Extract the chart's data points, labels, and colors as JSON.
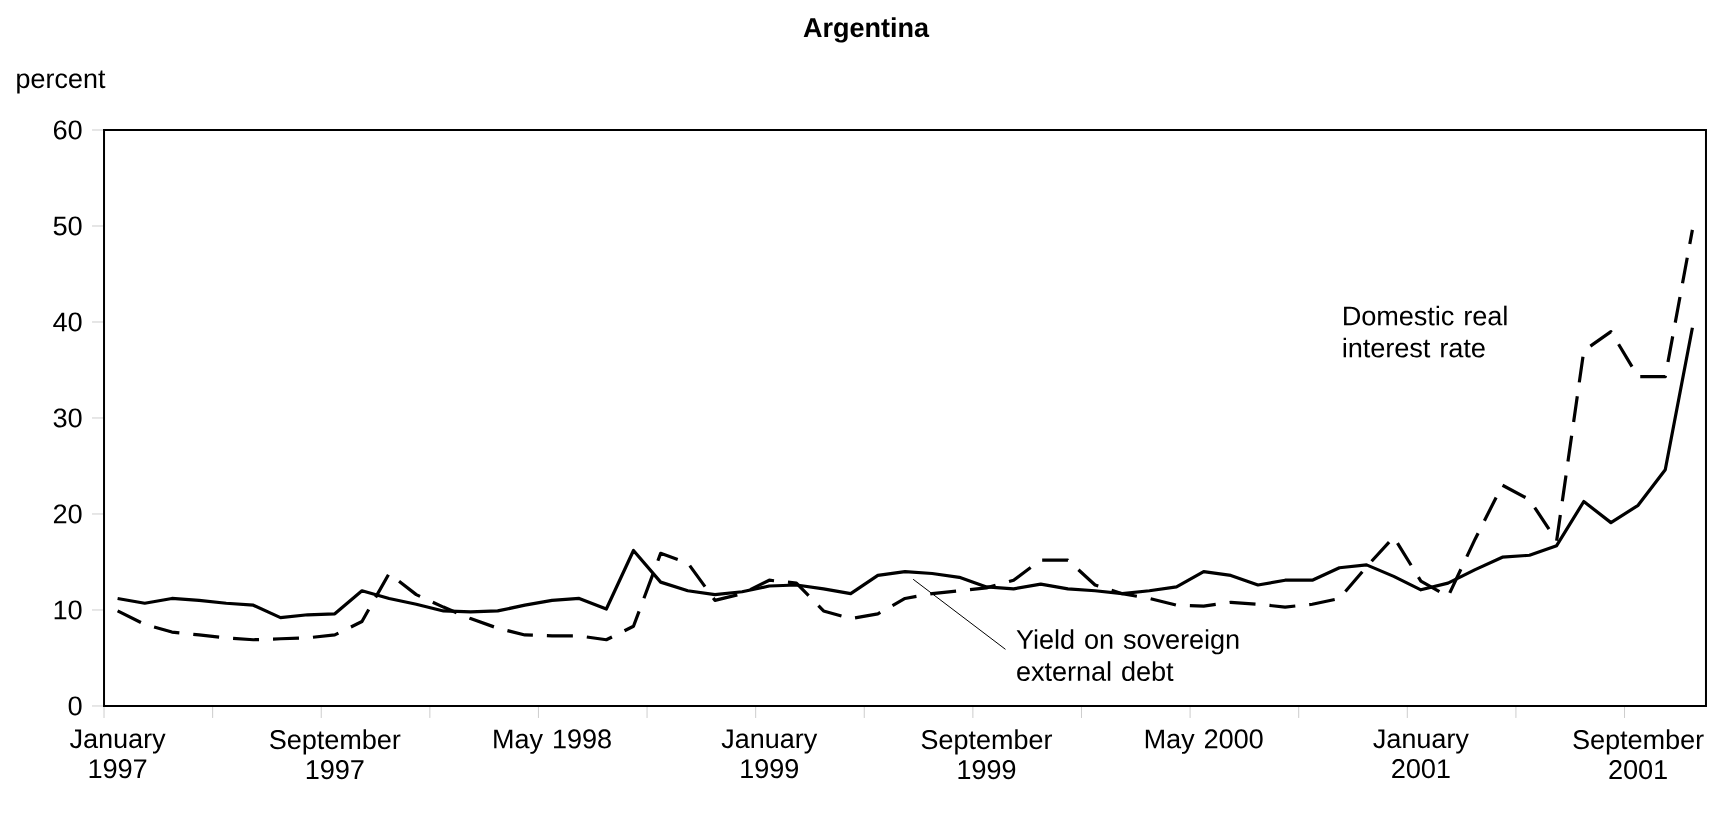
{
  "chart_data": {
    "type": "line",
    "title": "Argentina",
    "ylabel": "percent",
    "categories": [
      "January 1997",
      null,
      null,
      null,
      null,
      null,
      null,
      null,
      "September 1997",
      null,
      null,
      null,
      null,
      null,
      null,
      null,
      "May 1998",
      null,
      null,
      null,
      null,
      null,
      null,
      null,
      "January 1999",
      null,
      null,
      null,
      null,
      null,
      null,
      null,
      "September 1999",
      null,
      null,
      null,
      null,
      null,
      null,
      null,
      "May 2000",
      null,
      null,
      null,
      null,
      null,
      null,
      null,
      "January 2001",
      null,
      null,
      null,
      null,
      null,
      null,
      null,
      "September 2001",
      null,
      null
    ],
    "ylim": [
      0,
      60
    ],
    "yticks": [
      0,
      10,
      20,
      30,
      40,
      50,
      60
    ],
    "grid": false,
    "legend": false,
    "marker": "none",
    "series": [
      {
        "name": "Domestic real interest rate",
        "color": "#000000",
        "line_style": "dashed",
        "values": [
          9.9,
          8.5,
          7.7,
          7.4,
          7.1,
          6.9,
          7.0,
          7.1,
          7.4,
          8.8,
          13.8,
          11.6,
          10.3,
          9.1,
          8.1,
          7.4,
          7.3,
          7.3,
          6.9,
          8.3,
          15.9,
          14.9,
          11.0,
          11.7,
          13.1,
          12.8,
          9.9,
          9.1,
          9.6,
          11.2,
          11.7,
          12.0,
          12.3,
          13.1,
          15.2,
          15.2,
          12.6,
          11.7,
          11.2,
          10.5,
          10.4,
          10.8,
          10.6,
          10.3,
          10.6,
          11.2,
          14.5,
          17.6,
          13.0,
          11.4,
          17.4,
          23.0,
          21.5,
          17.2,
          37.0,
          39.0,
          34.3,
          34.3,
          49.6
        ]
      },
      {
        "name": "Yield on sovereign external debt",
        "color": "#000000",
        "line_style": "solid",
        "values": [
          11.2,
          10.7,
          11.2,
          11.0,
          10.7,
          10.5,
          9.2,
          9.5,
          9.6,
          12.0,
          11.2,
          10.6,
          9.9,
          9.8,
          9.9,
          10.5,
          11.0,
          11.2,
          10.1,
          16.2,
          12.9,
          12.0,
          11.6,
          11.9,
          12.5,
          12.6,
          12.2,
          11.7,
          13.6,
          14.0,
          13.8,
          13.4,
          12.4,
          12.2,
          12.7,
          12.2,
          12.0,
          11.7,
          12.0,
          12.4,
          14.0,
          13.6,
          12.6,
          13.1,
          13.1,
          14.4,
          14.7,
          13.5,
          12.1,
          12.8,
          14.2,
          15.5,
          15.7,
          16.7,
          21.3,
          19.1,
          20.9,
          24.6,
          39.4
        ]
      }
    ]
  }
}
